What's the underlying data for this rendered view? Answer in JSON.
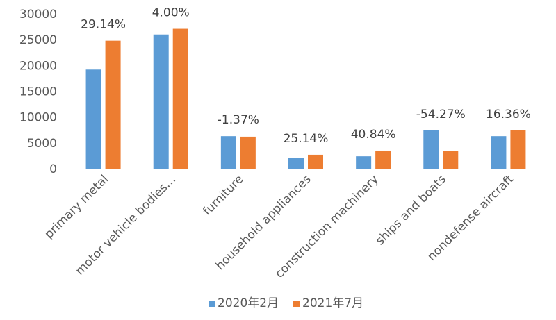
{
  "chart_data": {
    "type": "bar",
    "categories": [
      "primary metal",
      "motor vehicle bodies…",
      "furniture",
      "household appliances",
      "construction machinery",
      "ships and boats",
      "nondefense aircraft"
    ],
    "series": [
      {
        "name": "2020年2月",
        "color": "#5B9BD5",
        "values": [
          19200,
          26000,
          6300,
          2100,
          2400,
          7400,
          6300
        ]
      },
      {
        "name": "2021年7月",
        "color": "#ED7D31",
        "values": [
          24800,
          27100,
          6200,
          2700,
          3500,
          3400,
          7400
        ]
      }
    ],
    "data_labels": [
      "29.14%",
      "4.00%",
      "-1.37%",
      "25.14%",
      "40.84%",
      "-54.27%",
      "16.36%"
    ],
    "yticks": [
      "0",
      "5000",
      "10000",
      "15000",
      "20000",
      "25000",
      "30000"
    ],
    "ylim": [
      0,
      30000
    ],
    "grid": false,
    "legend_position": "bottom"
  }
}
